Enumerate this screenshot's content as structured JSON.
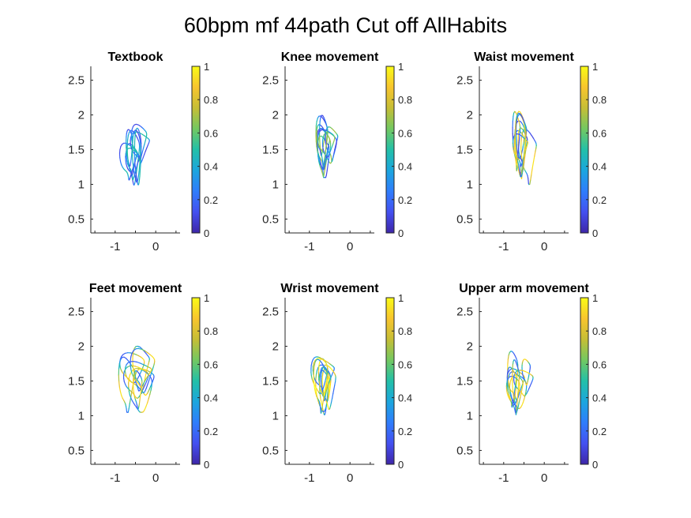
{
  "title": "60bpm mf 44path Cut off AllHabits",
  "colormap": [
    "#3e26a8",
    "#4450f0",
    "#2f7dfc",
    "#1ba6de",
    "#23c0a8",
    "#73c861",
    "#c6be36",
    "#f8c52e",
    "#f9fb15"
  ],
  "chart_data": [
    {
      "type": "line",
      "title": "Textbook",
      "xlim": [
        -1.6,
        0.6
      ],
      "ylim": [
        0.3,
        2.7
      ],
      "xticks": [
        "-1",
        "0"
      ],
      "yticks": [
        "0.5",
        "1",
        "1.5",
        "2",
        "2.5"
      ],
      "colorbar_ticks": [
        "0",
        "0.2",
        "0.4",
        "0.6",
        "0.8",
        "1"
      ],
      "colorbar_range": [
        0,
        1
      ],
      "data_extent": {
        "x": [
          -0.9,
          -0.1
        ],
        "y": [
          0.88,
          2.0
        ]
      },
      "color_range": [
        0.1,
        0.5
      ],
      "seed": 11
    },
    {
      "type": "line",
      "title": "Knee movement",
      "xlim": [
        -1.6,
        0.6
      ],
      "ylim": [
        0.3,
        2.7
      ],
      "xticks": [
        "-1",
        "0"
      ],
      "yticks": [
        "0.5",
        "1",
        "1.5",
        "2",
        "2.5"
      ],
      "colorbar_ticks": [
        "0",
        "0.2",
        "0.4",
        "0.6",
        "0.8",
        "1"
      ],
      "colorbar_range": [
        0,
        1
      ],
      "data_extent": {
        "x": [
          -0.95,
          -0.2
        ],
        "y": [
          1.1,
          2.0
        ]
      },
      "color_range": [
        0.1,
        0.7
      ],
      "seed": 23
    },
    {
      "type": "line",
      "title": "Waist movement",
      "xlim": [
        -1.6,
        0.6
      ],
      "ylim": [
        0.3,
        2.7
      ],
      "xticks": [
        "-1",
        "0"
      ],
      "yticks": [
        "0.5",
        "1",
        "1.5",
        "2",
        "2.5"
      ],
      "colorbar_ticks": [
        "0",
        "0.2",
        "0.4",
        "0.6",
        "0.8",
        "1"
      ],
      "colorbar_range": [
        0,
        1
      ],
      "data_extent": {
        "x": [
          -1.0,
          0.0
        ],
        "y": [
          1.0,
          2.05
        ]
      },
      "color_range": [
        0.1,
        0.95
      ],
      "seed": 37
    },
    {
      "type": "line",
      "title": "Feet movement",
      "xlim": [
        -1.6,
        0.6
      ],
      "ylim": [
        0.3,
        2.7
      ],
      "xticks": [
        "-1",
        "0"
      ],
      "yticks": [
        "0.5",
        "1",
        "1.5",
        "2",
        "2.5"
      ],
      "colorbar_ticks": [
        "0",
        "0.2",
        "0.4",
        "0.6",
        "0.8",
        "1"
      ],
      "colorbar_range": [
        0,
        1
      ],
      "data_extent": {
        "x": [
          -1.05,
          0.15
        ],
        "y": [
          1.05,
          2.0
        ]
      },
      "color_range": [
        0.15,
        0.95
      ],
      "seed": 41
    },
    {
      "type": "line",
      "title": "Wrist movement",
      "xlim": [
        -1.6,
        0.6
      ],
      "ylim": [
        0.3,
        2.7
      ],
      "xticks": [
        "-1",
        "0"
      ],
      "yticks": [
        "0.5",
        "1",
        "1.5",
        "2",
        "2.5"
      ],
      "colorbar_ticks": [
        "0",
        "0.2",
        "0.4",
        "0.6",
        "0.8",
        "1"
      ],
      "colorbar_range": [
        0,
        1
      ],
      "data_extent": {
        "x": [
          -1.05,
          0.0
        ],
        "y": [
          1.0,
          2.0
        ]
      },
      "color_range": [
        0.2,
        1.0
      ],
      "seed": 53
    },
    {
      "type": "line",
      "title": "Upper arm movement",
      "xlim": [
        -1.6,
        0.6
      ],
      "ylim": [
        0.3,
        2.7
      ],
      "xticks": [
        "-1",
        "0"
      ],
      "yticks": [
        "0.5",
        "1",
        "1.5",
        "2",
        "2.5"
      ],
      "colorbar_ticks": [
        "0",
        "0.2",
        "0.4",
        "0.6",
        "0.8",
        "1"
      ],
      "colorbar_range": [
        0,
        1
      ],
      "data_extent": {
        "x": [
          -1.05,
          -0.15
        ],
        "y": [
          1.0,
          2.0
        ]
      },
      "color_range": [
        0.15,
        0.95
      ],
      "seed": 67
    }
  ]
}
